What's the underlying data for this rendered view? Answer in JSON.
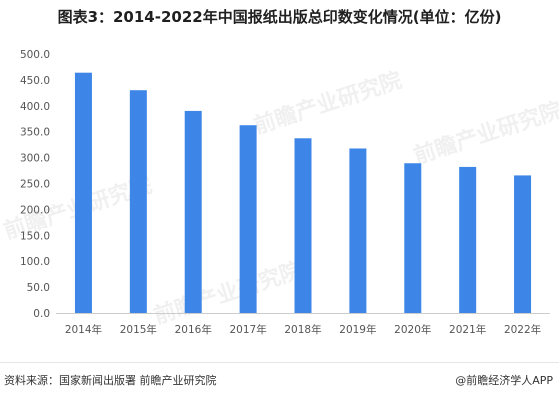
{
  "title": "图表3：2014-2022年中国报纸出版总印数变化情况(单位：亿份)",
  "source_left": "资料来源：国家新闻出版署 前瞻产业研究院",
  "source_right": "@前瞻经济学人APP",
  "watermark": "前瞻产业研究院",
  "colors": {
    "bar": "#3d86e8",
    "axis": "#cccccc",
    "tick": "#555555"
  },
  "chart_data": {
    "type": "bar",
    "categories": [
      "2014年",
      "2015年",
      "2016年",
      "2017年",
      "2018年",
      "2019年",
      "2020年",
      "2021年",
      "2022年"
    ],
    "values": [
      463.9,
      430.1,
      390.1,
      362.5,
      337.3,
      317.6,
      289.1,
      282.0,
      265.6
    ],
    "y_ticks": [
      "0.0",
      "50.0",
      "100.0",
      "150.0",
      "200.0",
      "250.0",
      "300.0",
      "350.0",
      "400.0",
      "450.0",
      "500.0"
    ],
    "ylim": [
      0,
      500
    ],
    "grid": false,
    "legend": "none"
  }
}
